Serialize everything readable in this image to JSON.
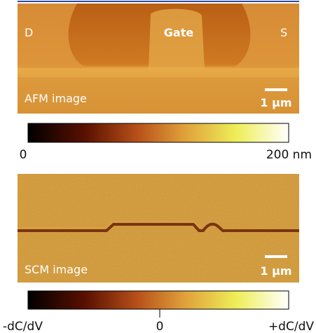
{
  "figure": {
    "afm": {
      "labels": {
        "left": "D",
        "center": "Gate",
        "right": "S"
      },
      "caption": "AFM image",
      "scale_bar": "1 µm"
    },
    "afm_colorbar": {
      "min_label": "0",
      "max_label": "200 nm"
    },
    "scm": {
      "caption": "SCM image",
      "scale_bar": "1 µm"
    },
    "scm_colorbar": {
      "min_label": "-dC/dV",
      "mid_label": "0",
      "max_label": "+dC/dV"
    }
  }
}
